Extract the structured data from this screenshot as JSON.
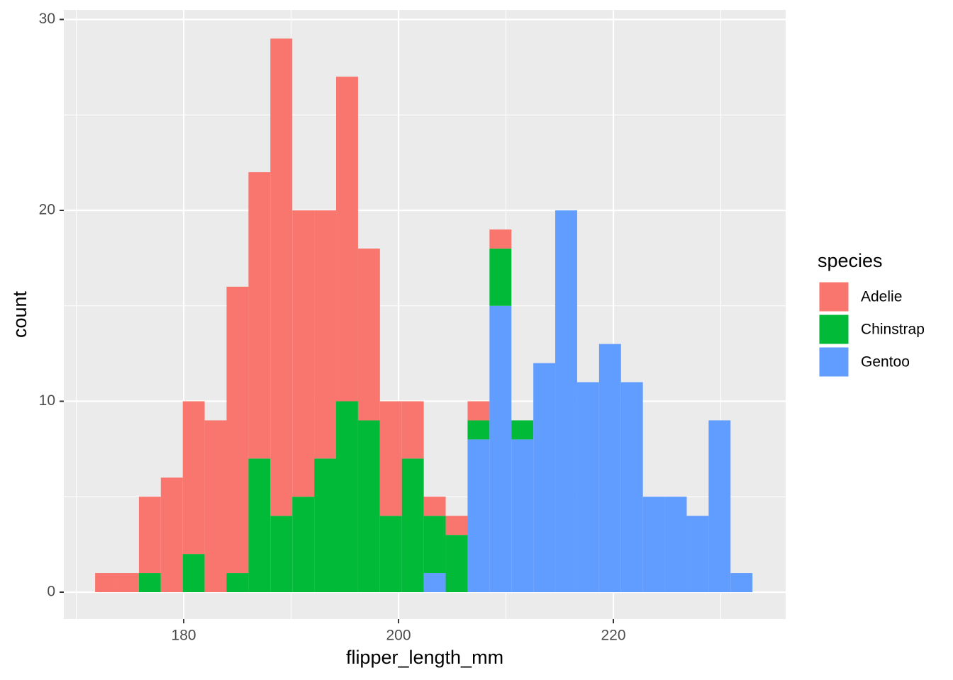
{
  "chart_data": {
    "type": "histogram",
    "x_label": "flipper_length_mm",
    "y_label": "count",
    "legend_title": "species",
    "bins": [
      171.75,
      173.79,
      175.83,
      177.87,
      179.91,
      181.95,
      183.99,
      186.03,
      188.07,
      190.11,
      192.15,
      194.19,
      196.23,
      198.27,
      200.31,
      202.35,
      204.39,
      206.43,
      208.47,
      210.51,
      212.55,
      214.59,
      216.63,
      218.67,
      220.71,
      222.75,
      224.79,
      226.83,
      228.87,
      230.91,
      232.95
    ],
    "series": [
      {
        "name": "Adelie",
        "color": "#F8766D",
        "values": [
          1,
          1,
          4,
          6,
          8,
          9,
          15,
          15,
          25,
          15,
          13,
          17,
          9,
          6,
          3,
          1,
          1,
          1,
          1,
          0,
          0,
          0,
          0,
          0,
          0,
          0,
          0,
          0,
          0,
          0
        ]
      },
      {
        "name": "Chinstrap",
        "color": "#00BA38",
        "values": [
          0,
          0,
          1,
          0,
          2,
          0,
          1,
          7,
          4,
          5,
          7,
          10,
          9,
          4,
          7,
          3,
          3,
          1,
          3,
          1,
          0,
          0,
          0,
          0,
          0,
          0,
          0,
          0,
          0,
          0
        ]
      },
      {
        "name": "Gentoo",
        "color": "#619CFF",
        "values": [
          0,
          0,
          0,
          0,
          0,
          0,
          0,
          0,
          0,
          0,
          0,
          0,
          0,
          0,
          0,
          1,
          0,
          8,
          15,
          8,
          12,
          20,
          11,
          13,
          11,
          5,
          5,
          4,
          9,
          1
        ]
      }
    ],
    "stacked": true,
    "xlim": [
      168.84,
      236.04
    ],
    "ylim": [
      -1.41,
      30.5
    ],
    "xticks": [
      180,
      200,
      220
    ],
    "yticks": [
      0,
      10,
      20,
      30
    ],
    "grid": true,
    "legend": "right"
  }
}
